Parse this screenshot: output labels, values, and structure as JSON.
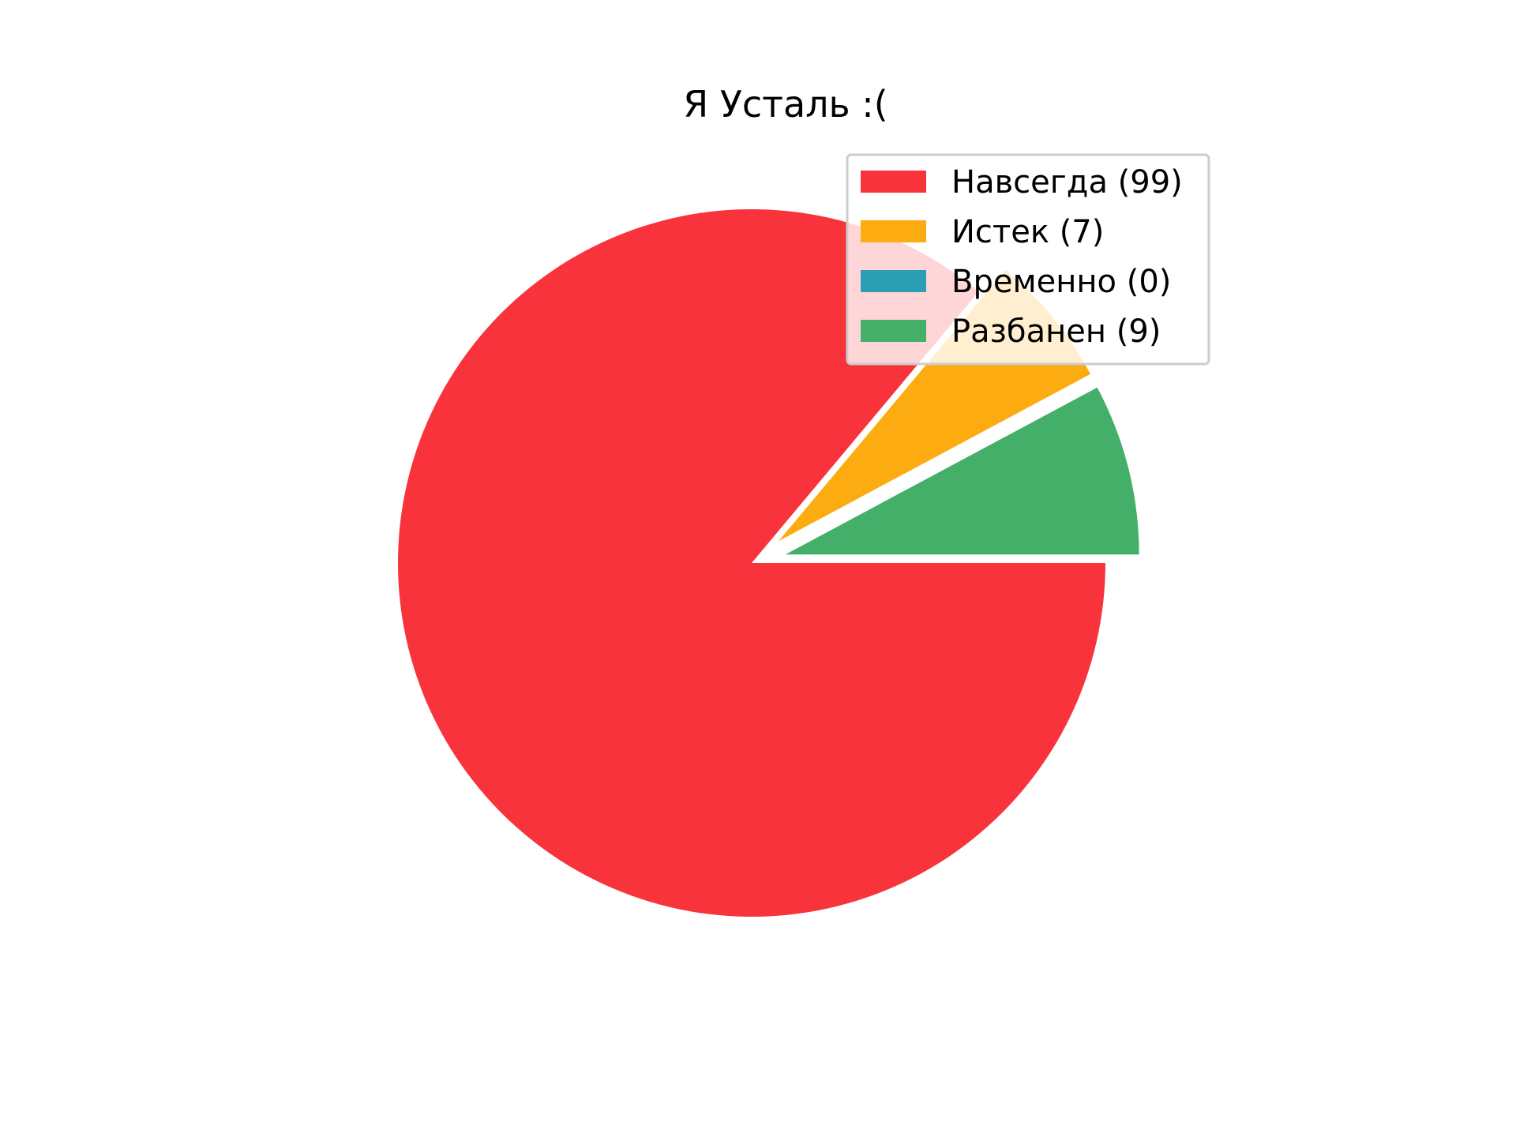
{
  "chart_data": {
    "type": "pie",
    "title": "Я Усталь :(",
    "slices": [
      {
        "label": "Навсегда",
        "legend": "Навсегда (99)",
        "value": 99,
        "color": "#f8333c",
        "exploded": false
      },
      {
        "label": "Истек",
        "legend": "Истек (7)",
        "value": 7,
        "color": "#fcab10",
        "exploded": true
      },
      {
        "label": "Временно",
        "legend": "Временно (0)",
        "value": 0,
        "color": "#2b9eb3",
        "exploded": true
      },
      {
        "label": "Разбанен",
        "legend": "Разбанен (9)",
        "value": 9,
        "color": "#44af69",
        "exploded": true
      }
    ],
    "start_angle": 0,
    "direction": "clockwise",
    "legend_position": "upper-right"
  }
}
